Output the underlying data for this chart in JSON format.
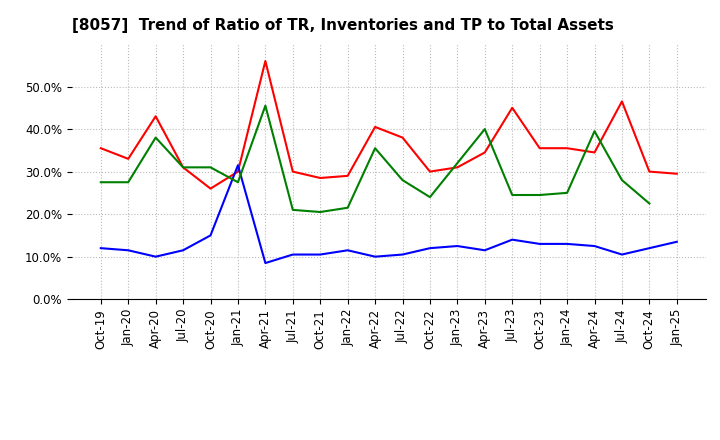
{
  "title": "[8057]  Trend of Ratio of TR, Inventories and TP to Total Assets",
  "x_labels": [
    "Oct-19",
    "Jan-20",
    "Apr-20",
    "Jul-20",
    "Oct-20",
    "Jan-21",
    "Apr-21",
    "Jul-21",
    "Oct-21",
    "Jan-22",
    "Apr-22",
    "Jul-22",
    "Oct-22",
    "Jan-23",
    "Apr-23",
    "Jul-23",
    "Oct-23",
    "Jan-24",
    "Apr-24",
    "Jul-24",
    "Oct-24",
    "Jan-25"
  ],
  "trade_receivables": [
    0.355,
    0.33,
    0.43,
    0.31,
    0.26,
    0.3,
    0.56,
    0.3,
    0.285,
    0.29,
    0.405,
    0.38,
    0.3,
    0.31,
    0.345,
    0.45,
    0.355,
    0.355,
    0.345,
    0.465,
    0.3,
    0.295
  ],
  "inventories": [
    0.12,
    0.115,
    0.1,
    0.115,
    0.15,
    0.315,
    0.085,
    0.105,
    0.105,
    0.115,
    0.1,
    0.105,
    0.12,
    0.125,
    0.115,
    0.14,
    0.13,
    0.13,
    0.125,
    0.105,
    0.12,
    0.135
  ],
  "trade_payables": [
    0.275,
    0.275,
    0.38,
    0.31,
    0.31,
    0.275,
    0.455,
    0.21,
    0.205,
    0.215,
    0.355,
    0.28,
    0.24,
    0.32,
    0.4,
    0.245,
    0.245,
    0.25,
    0.395,
    0.28,
    0.225,
    null
  ],
  "tr_color": "#FF0000",
  "inv_color": "#0000FF",
  "tp_color": "#008000",
  "ylim": [
    0.0,
    0.6
  ],
  "yticks": [
    0.0,
    0.1,
    0.2,
    0.3,
    0.4,
    0.5
  ],
  "background_color": "#FFFFFF",
  "grid_color": "#BBBBBB",
  "title_fontsize": 11,
  "tick_fontsize": 8.5,
  "legend_fontsize": 9
}
